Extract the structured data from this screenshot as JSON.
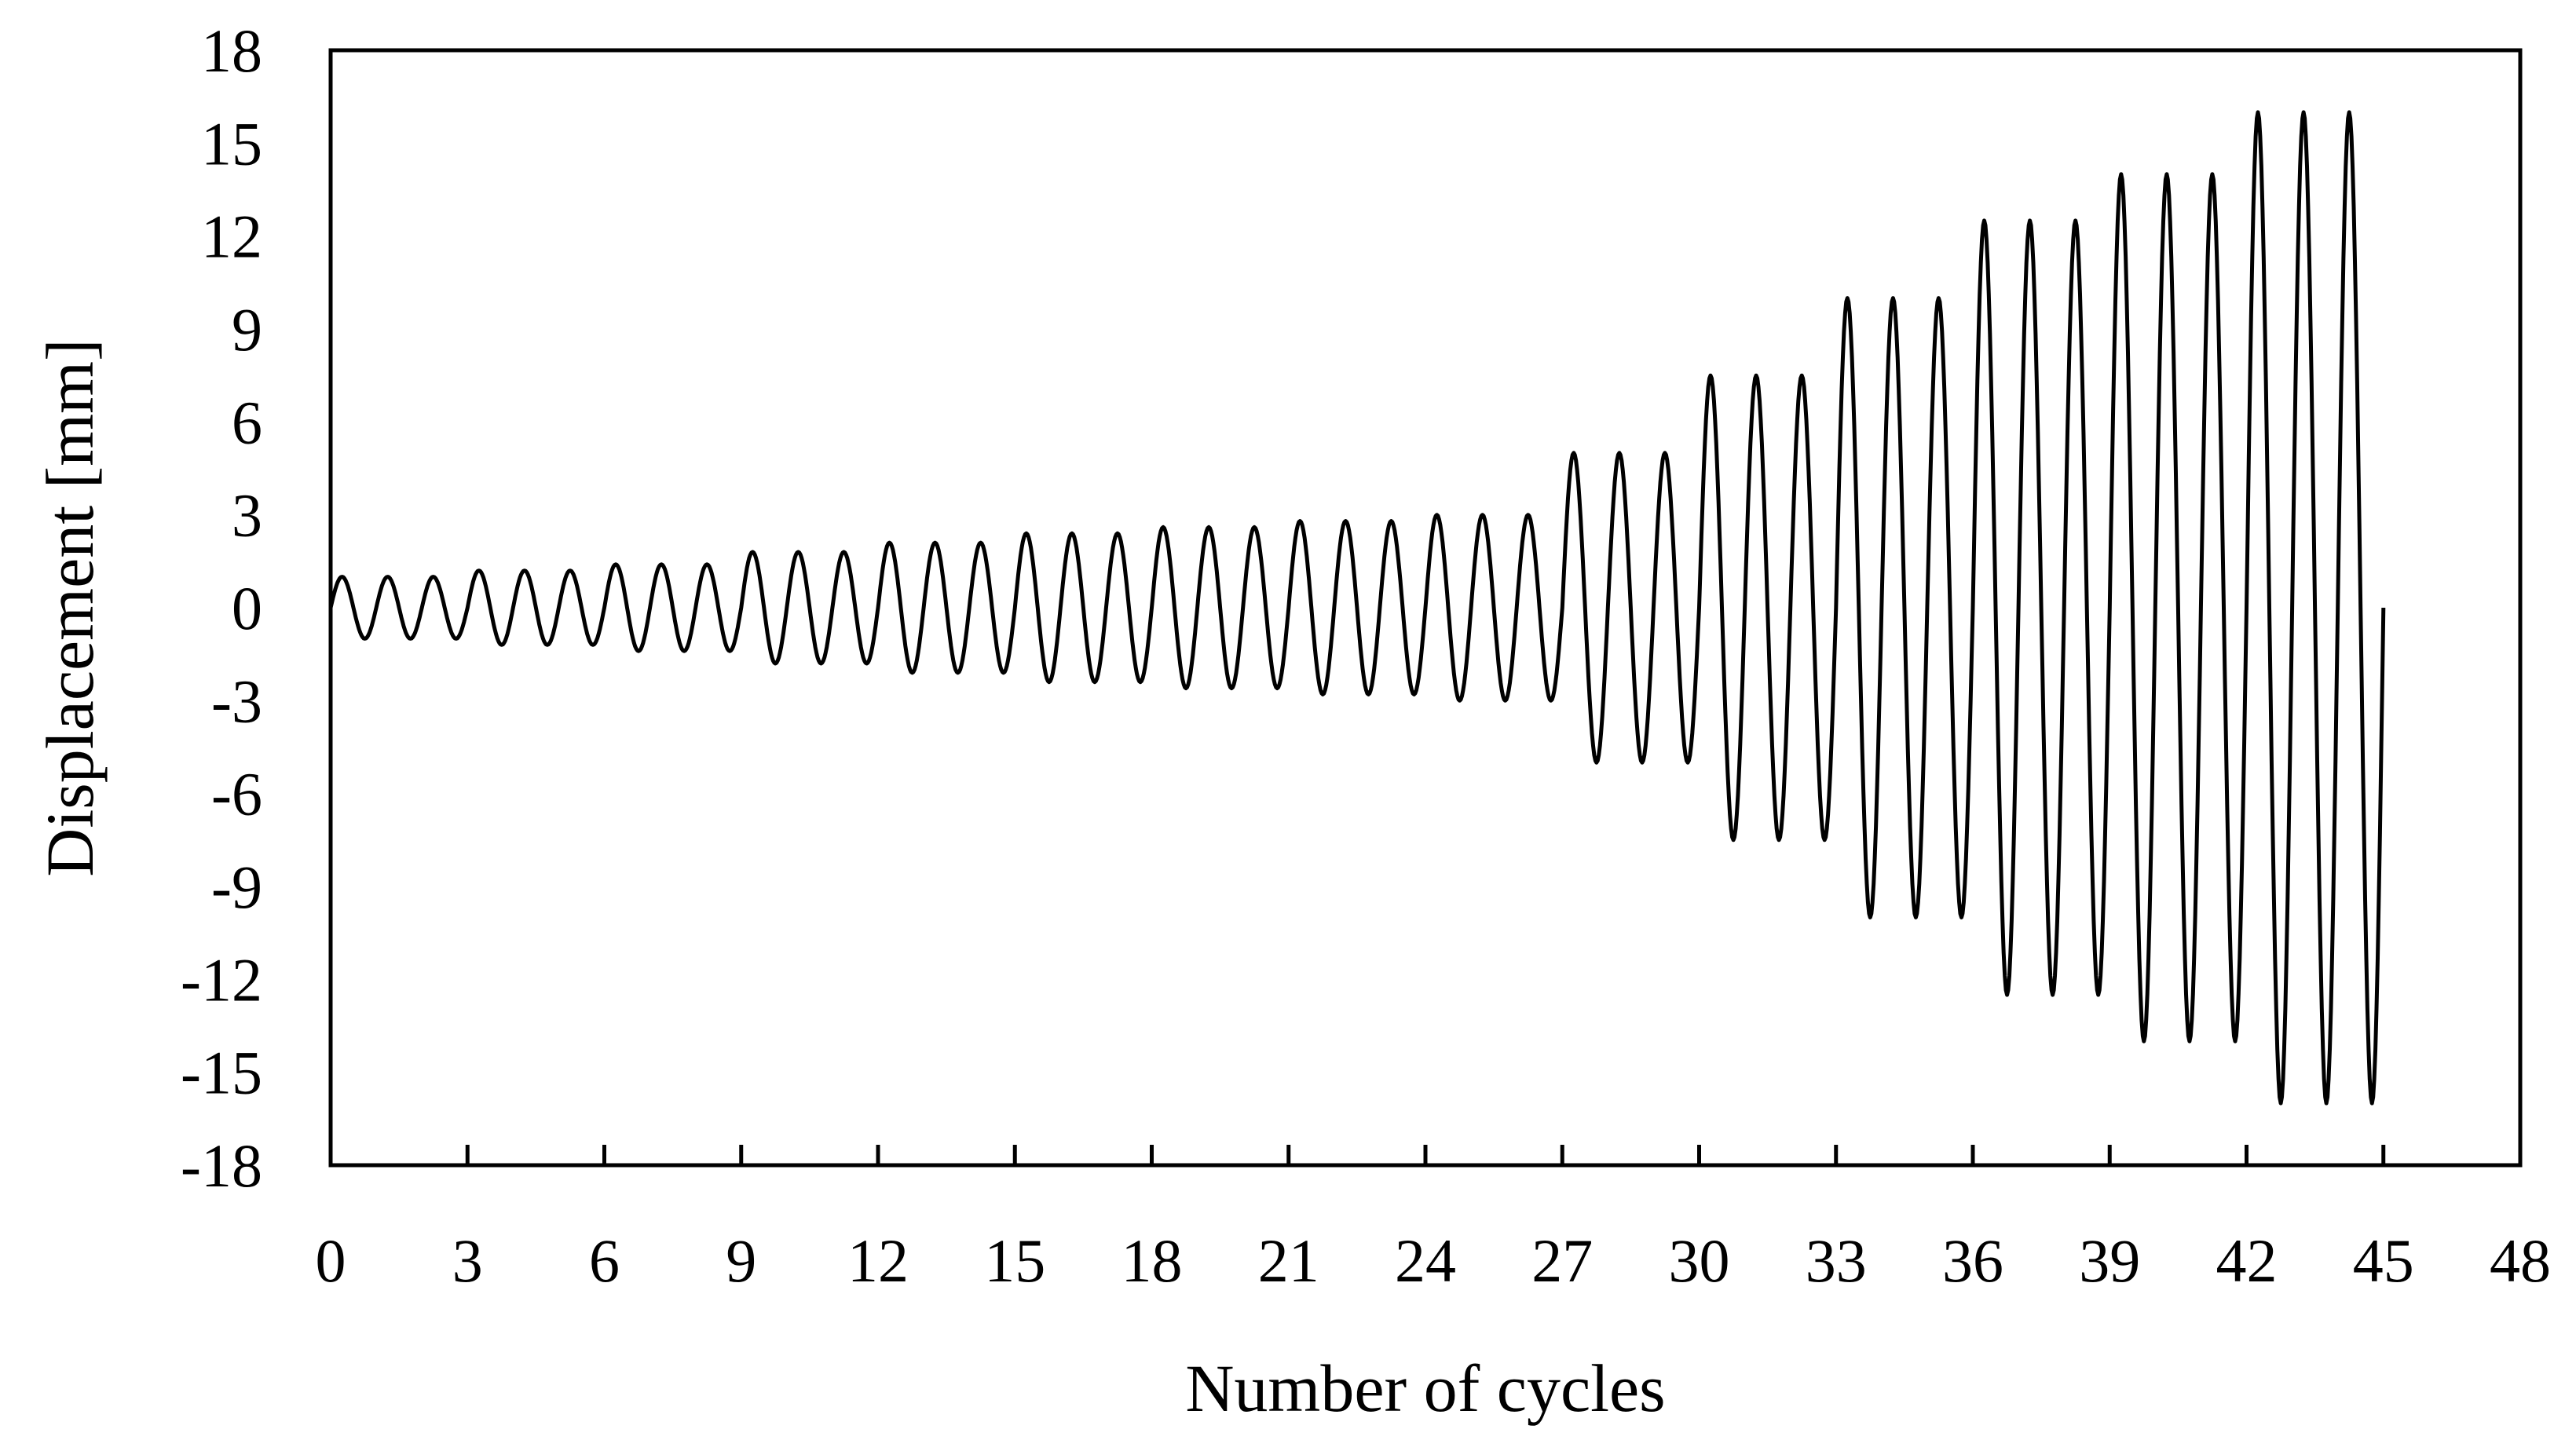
{
  "chart_data": {
    "type": "line",
    "title": "",
    "xlabel": "Number of cycles",
    "ylabel": "Displacement  [mm]",
    "xlim": [
      0,
      48
    ],
    "ylim": [
      -18,
      18
    ],
    "xticks": [
      0,
      3,
      6,
      9,
      12,
      15,
      18,
      21,
      24,
      27,
      30,
      33,
      36,
      39,
      42,
      45,
      48
    ],
    "yticks": [
      18,
      15,
      12,
      9,
      6,
      3,
      0,
      -3,
      -6,
      -9,
      -12,
      -15,
      -18
    ],
    "grid": false,
    "legend": "none",
    "line_color": "#000000",
    "series": [
      {
        "description": "sinusoidal displacement history, amplitude per cycle (mm)",
        "cycle_amplitudes": [
          1.0,
          1.0,
          1.0,
          1.2,
          1.2,
          1.2,
          1.4,
          1.4,
          1.4,
          1.8,
          1.8,
          1.8,
          2.1,
          2.1,
          2.1,
          2.4,
          2.4,
          2.4,
          2.6,
          2.6,
          2.6,
          2.8,
          2.8,
          2.8,
          3.0,
          3.0,
          3.0,
          5.0,
          5.0,
          5.0,
          7.5,
          7.5,
          7.5,
          10.0,
          10.0,
          10.0,
          12.5,
          12.5,
          12.5,
          14.0,
          14.0,
          14.0,
          16.0,
          16.0,
          16.0
        ]
      }
    ]
  }
}
